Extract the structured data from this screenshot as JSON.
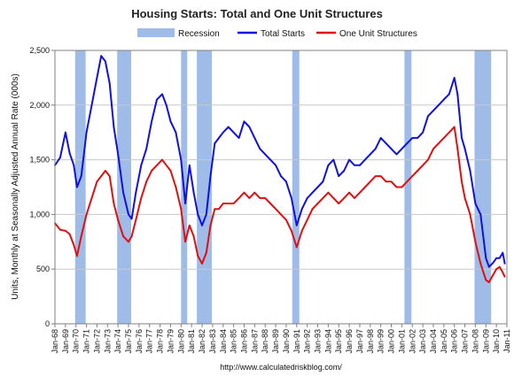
{
  "chart_data": {
    "type": "line",
    "title": "Housing Starts: Total and One Unit Structures",
    "xlabel": "",
    "ylabel": "Units, Monthly at Seasonally Adjusted Annual Rate (000s)",
    "source": "http://www.calculatedriskblog.com/",
    "ylim": [
      0,
      2500
    ],
    "xlim": [
      1968.0,
      2011.0
    ],
    "yticks": [
      "0",
      "500",
      "1,000",
      "1,500",
      "2,000",
      "2,500"
    ],
    "ytick_values": [
      0,
      500,
      1000,
      1500,
      2000,
      2500
    ],
    "xtick_labels": [
      "Jan-68",
      "Jan-69",
      "Jan-70",
      "Jan-71",
      "Jan-72",
      "Jan-73",
      "Jan-74",
      "Jan-75",
      "Jan-76",
      "Jan-77",
      "Jan-78",
      "Jan-79",
      "Jan-80",
      "Jan-81",
      "Jan-82",
      "Jan-83",
      "Jan-84",
      "Jan-85",
      "Jan-86",
      "Jan-87",
      "Jan-88",
      "Jan-89",
      "Jan-90",
      "Jan-91",
      "Jan-92",
      "Jan-93",
      "Jan-94",
      "Jan-95",
      "Jan-96",
      "Jan-97",
      "Jan-98",
      "Jan-99",
      "Jan-00",
      "Jan-01",
      "Jan-02",
      "Jan-03",
      "Jan-04",
      "Jan-05",
      "Jan-06",
      "Jan-07",
      "Jan-08",
      "Jan-09",
      "Jan-10",
      "Jan-11"
    ],
    "xtick_years": [
      1968,
      1969,
      1970,
      1971,
      1972,
      1973,
      1974,
      1975,
      1976,
      1977,
      1978,
      1979,
      1980,
      1981,
      1982,
      1983,
      1984,
      1985,
      1986,
      1987,
      1988,
      1989,
      1990,
      1991,
      1992,
      1993,
      1994,
      1995,
      1996,
      1997,
      1998,
      1999,
      2000,
      2001,
      2002,
      2003,
      2004,
      2005,
      2006,
      2007,
      2008,
      2009,
      2010,
      2011
    ],
    "legend": {
      "position": "top",
      "items": [
        "Recession",
        "Total Starts",
        "One Unit Structures"
      ]
    },
    "recessions": [
      {
        "start": 1969.92,
        "end": 1970.92
      },
      {
        "start": 1973.92,
        "end": 1975.25
      },
      {
        "start": 1980.0,
        "end": 1980.58
      },
      {
        "start": 1981.5,
        "end": 1982.92
      },
      {
        "start": 1990.58,
        "end": 1991.25
      },
      {
        "start": 2001.25,
        "end": 2001.92
      },
      {
        "start": 2007.92,
        "end": 2009.5
      }
    ],
    "series": [
      {
        "name": "Total Starts",
        "color": "#1010e0",
        "x": [
          1968.0,
          1968.5,
          1969.0,
          1969.4,
          1969.8,
          1970.1,
          1970.5,
          1971.0,
          1971.5,
          1972.0,
          1972.4,
          1972.8,
          1973.2,
          1973.6,
          1974.0,
          1974.5,
          1975.0,
          1975.3,
          1975.7,
          1976.2,
          1976.7,
          1977.2,
          1977.7,
          1978.2,
          1978.6,
          1979.0,
          1979.5,
          1980.0,
          1980.4,
          1980.8,
          1981.2,
          1981.6,
          1982.0,
          1982.4,
          1982.8,
          1983.2,
          1983.6,
          1984.0,
          1984.5,
          1985.0,
          1985.5,
          1986.0,
          1986.5,
          1987.0,
          1987.5,
          1988.0,
          1988.5,
          1989.0,
          1989.5,
          1990.0,
          1990.5,
          1991.0,
          1991.5,
          1992.0,
          1992.5,
          1993.0,
          1993.5,
          1994.0,
          1994.5,
          1995.0,
          1995.5,
          1996.0,
          1996.5,
          1997.0,
          1997.5,
          1998.0,
          1998.5,
          1999.0,
          1999.5,
          2000.0,
          2000.5,
          2001.0,
          2001.5,
          2002.0,
          2002.5,
          2003.0,
          2003.5,
          2004.0,
          2004.5,
          2005.0,
          2005.5,
          2006.0,
          2006.3,
          2006.7,
          2007.0,
          2007.5,
          2008.0,
          2008.5,
          2009.0,
          2009.3,
          2009.7,
          2010.0,
          2010.3,
          2010.6,
          2010.8
        ],
        "values": [
          1450,
          1520,
          1750,
          1560,
          1450,
          1250,
          1350,
          1750,
          2000,
          2250,
          2450,
          2400,
          2200,
          1800,
          1550,
          1200,
          1000,
          960,
          1200,
          1450,
          1600,
          1850,
          2050,
          2100,
          2000,
          1850,
          1750,
          1500,
          1100,
          1450,
          1200,
          1000,
          900,
          1000,
          1350,
          1650,
          1700,
          1750,
          1800,
          1750,
          1700,
          1850,
          1800,
          1700,
          1600,
          1550,
          1500,
          1450,
          1350,
          1300,
          1150,
          900,
          1050,
          1150,
          1200,
          1250,
          1300,
          1450,
          1500,
          1350,
          1400,
          1500,
          1450,
          1450,
          1500,
          1550,
          1600,
          1700,
          1650,
          1600,
          1550,
          1600,
          1650,
          1700,
          1700,
          1750,
          1900,
          1950,
          2000,
          2050,
          2100,
          2250,
          2100,
          1700,
          1600,
          1400,
          1100,
          1000,
          600,
          520,
          560,
          600,
          600,
          650,
          550
        ]
      },
      {
        "name": "One Unit Structures",
        "color": "#e01010",
        "x": [
          1968.0,
          1968.5,
          1969.0,
          1969.4,
          1969.8,
          1970.1,
          1970.5,
          1971.0,
          1971.5,
          1972.0,
          1972.4,
          1972.8,
          1973.2,
          1973.6,
          1974.0,
          1974.5,
          1975.0,
          1975.3,
          1975.7,
          1976.2,
          1976.7,
          1977.2,
          1977.7,
          1978.2,
          1978.6,
          1979.0,
          1979.5,
          1980.0,
          1980.4,
          1980.8,
          1981.2,
          1981.6,
          1982.0,
          1982.4,
          1982.8,
          1983.2,
          1983.6,
          1984.0,
          1984.5,
          1985.0,
          1985.5,
          1986.0,
          1986.5,
          1987.0,
          1987.5,
          1988.0,
          1988.5,
          1989.0,
          1989.5,
          1990.0,
          1990.5,
          1991.0,
          1991.5,
          1992.0,
          1992.5,
          1993.0,
          1993.5,
          1994.0,
          1994.5,
          1995.0,
          1995.5,
          1996.0,
          1996.5,
          1997.0,
          1997.5,
          1998.0,
          1998.5,
          1999.0,
          1999.5,
          2000.0,
          2000.5,
          2001.0,
          2001.5,
          2002.0,
          2002.5,
          2003.0,
          2003.5,
          2004.0,
          2004.5,
          2005.0,
          2005.5,
          2006.0,
          2006.3,
          2006.7,
          2007.0,
          2007.5,
          2008.0,
          2008.5,
          2009.0,
          2009.3,
          2009.7,
          2010.0,
          2010.3,
          2010.6,
          2010.8
        ],
        "values": [
          920,
          860,
          850,
          820,
          720,
          620,
          800,
          1000,
          1150,
          1300,
          1350,
          1400,
          1350,
          1100,
          950,
          800,
          750,
          800,
          950,
          1150,
          1300,
          1400,
          1450,
          1500,
          1450,
          1400,
          1250,
          1050,
          750,
          900,
          800,
          620,
          550,
          650,
          900,
          1050,
          1050,
          1100,
          1100,
          1100,
          1150,
          1200,
          1150,
          1200,
          1150,
          1150,
          1100,
          1050,
          1000,
          950,
          850,
          700,
          850,
          950,
          1050,
          1100,
          1150,
          1200,
          1150,
          1100,
          1150,
          1200,
          1150,
          1200,
          1250,
          1300,
          1350,
          1350,
          1300,
          1300,
          1250,
          1250,
          1300,
          1350,
          1400,
          1450,
          1500,
          1600,
          1650,
          1700,
          1750,
          1800,
          1600,
          1300,
          1150,
          1000,
          750,
          550,
          400,
          380,
          450,
          500,
          520,
          470,
          430
        ]
      }
    ]
  }
}
